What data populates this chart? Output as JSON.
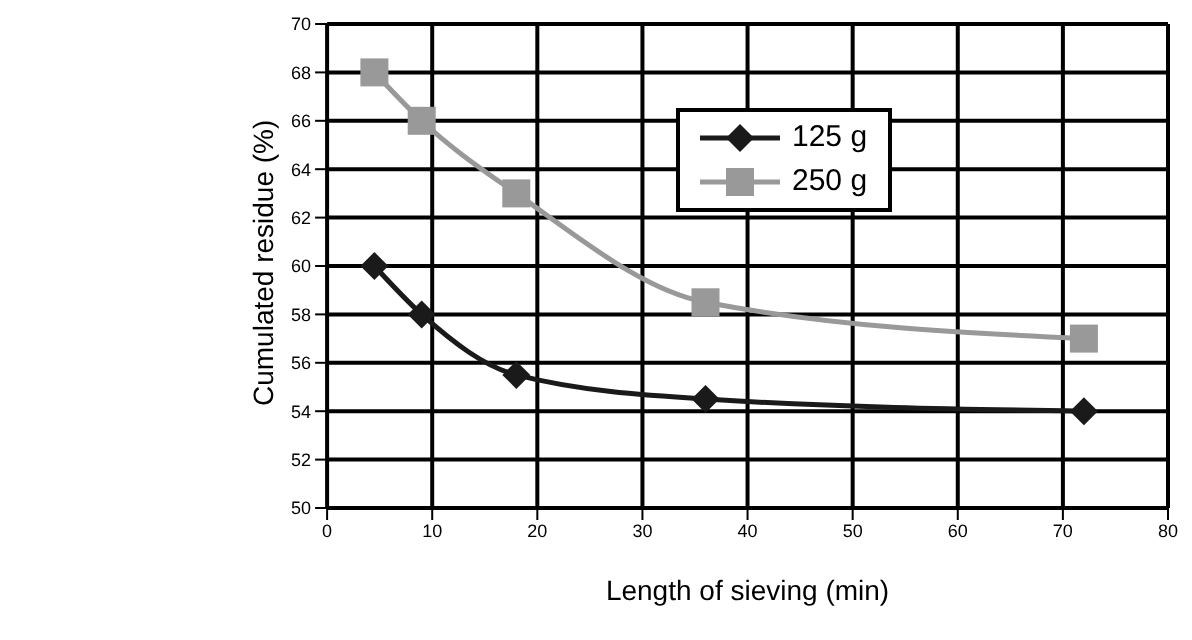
{
  "chart_data": {
    "type": "line",
    "xlabel": "Length of sieving (min)",
    "ylabel": "Cumulated residue (%)",
    "xlim": [
      0,
      80
    ],
    "xticks": [
      0,
      10,
      20,
      30,
      40,
      50,
      60,
      70,
      80
    ],
    "ylim": [
      50,
      70
    ],
    "yticks": [
      50,
      52,
      54,
      56,
      58,
      60,
      62,
      64,
      66,
      68,
      70
    ],
    "x": [
      4.5,
      9,
      18,
      36,
      72
    ],
    "series": [
      {
        "name": "125 g",
        "color": "#1a1a1a",
        "values": [
          60,
          58,
          55.5,
          54.5,
          54
        ],
        "marker": "diamond"
      },
      {
        "name": "250 g",
        "color": "#999999",
        "values": [
          68,
          66,
          63,
          58.5,
          57
        ],
        "marker": "square"
      }
    ],
    "grid": true,
    "legend": "top",
    "line_style": "solid"
  }
}
